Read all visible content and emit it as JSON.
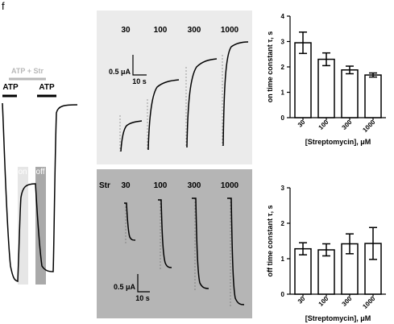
{
  "figure": {
    "panel_letter": "f",
    "trace": {
      "atp_left": "ATP",
      "atp_str": "ATP + Str",
      "atp_right": "ATP",
      "on_label": "on",
      "off_label": "off"
    },
    "on_traces": {
      "concentrations": [
        "30",
        "100",
        "300",
        "1000"
      ],
      "scale_current": "0.5 μA",
      "scale_time": "10 s"
    },
    "off_traces": {
      "str_label": "Str",
      "concentrations": [
        "30",
        "100",
        "300",
        "1000"
      ],
      "scale_current": "0.5 μA",
      "scale_time": "10 s"
    },
    "colors": {
      "on_panel_bg": "#ebebeb",
      "off_panel_bg": "#b5b5b5",
      "on_shade": "#e6e6e6",
      "off_shade": "#a9a9a9",
      "str_bar": "#b8b8b8"
    }
  },
  "chart_data": [
    {
      "type": "bar",
      "categories": [
        "30",
        "100",
        "300",
        "1000"
      ],
      "values": [
        2.95,
        2.3,
        1.88,
        1.68
      ],
      "errors": [
        0.42,
        0.25,
        0.15,
        0.08
      ],
      "xlabel": "[Streptomycin], μM",
      "ylabel": "on time constant τ, s",
      "ylim": [
        0,
        4
      ],
      "yticks": [
        "0",
        "1",
        "2",
        "3",
        "4"
      ]
    },
    {
      "type": "bar",
      "categories": [
        "30",
        "100",
        "300",
        "1000"
      ],
      "values": [
        1.28,
        1.25,
        1.42,
        1.43
      ],
      "errors": [
        0.17,
        0.17,
        0.28,
        0.45
      ],
      "xlabel": "[Streptomycin], μM",
      "ylabel": "off time constant τ, s",
      "ylim": [
        0,
        3
      ],
      "yticks": [
        "0",
        "1",
        "2",
        "3"
      ]
    }
  ]
}
